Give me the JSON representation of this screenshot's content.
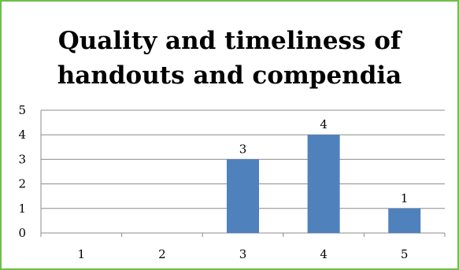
{
  "chart_data": {
    "type": "bar",
    "title_lines": [
      "Quality and timeliness of",
      "handouts and compendia"
    ],
    "categories": [
      "1",
      "2",
      "3",
      "4",
      "5"
    ],
    "values": [
      0,
      0,
      3,
      4,
      1
    ],
    "data_labels": [
      "",
      "",
      "3",
      "4",
      "1"
    ],
    "ylim": [
      0,
      5
    ],
    "yticks": [
      "0",
      "1",
      "2",
      "3",
      "4",
      "5"
    ],
    "grid": true,
    "legend": "none",
    "colors": {
      "bar": "#4f81bd",
      "grid": "#8c8c8c",
      "frame": "#6cc04a"
    }
  }
}
